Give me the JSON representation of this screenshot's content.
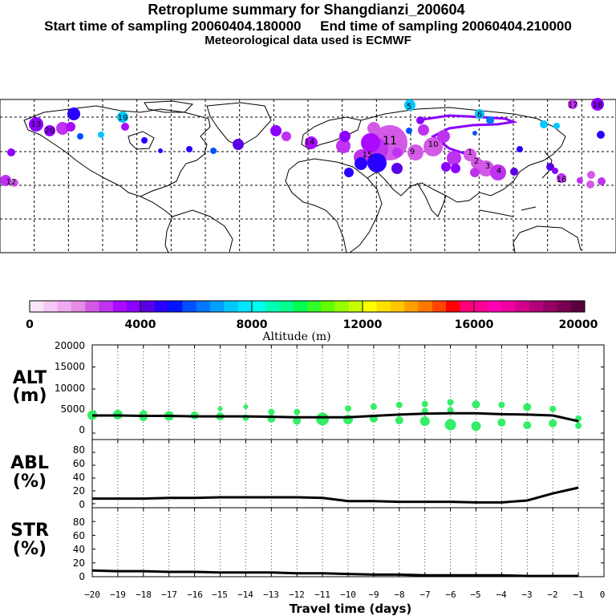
{
  "header": {
    "title": "Retroplume summary for Shangdianzi_200604",
    "sampling": "Start time of sampling 20060404.180000     End time of sampling 20060404.210000",
    "met": "Meteorological data used is ECMWF"
  },
  "colorbar": {
    "label": "Altitude (m)",
    "tick_labels": [
      "0",
      "4000",
      "8000",
      "12000",
      "16000",
      "20000"
    ],
    "colors": [
      "#fae6fa",
      "#f5c8f5",
      "#f0aaf0",
      "#e68ce6",
      "#d25ae6",
      "#be32f0",
      "#aa0aff",
      "#8c00ff",
      "#5a00e6",
      "#2800ff",
      "#0014ff",
      "#0050ff",
      "#0078ff",
      "#00a0ff",
      "#00c8ff",
      "#00e6ff",
      "#00fff0",
      "#00ffb4",
      "#00ff8c",
      "#00ff50",
      "#32ff28",
      "#64ff00",
      "#96ff00",
      "#c8ff00",
      "#ffff00",
      "#ffe100",
      "#ffc800",
      "#ffa000",
      "#ff7800",
      "#ff4600",
      "#ff0000",
      "#ff0078",
      "#ff0096",
      "#ff00b4",
      "#f000a0",
      "#d2008c",
      "#b40078",
      "#960064",
      "#7a004f",
      "#5a003c"
    ]
  },
  "map_labels": [
    {
      "text": "13",
      "color": "#8c00ff"
    },
    {
      "text": "20",
      "color": "#8c00ff"
    },
    {
      "text": "19",
      "color": "#00c8ff"
    },
    {
      "text": "5",
      "color": "#00c8ff"
    },
    {
      "text": "6",
      "color": "#8c00ff"
    },
    {
      "text": "18",
      "color": "#8c00ff"
    },
    {
      "text": "17",
      "color": "#2800ff"
    },
    {
      "text": "16",
      "color": "#be32f0"
    },
    {
      "text": "12",
      "color": "#d25ae6"
    },
    {
      "text": "11",
      "color": "#aa0aff"
    },
    {
      "text": "15",
      "color": "#be32f0"
    },
    {
      "text": "14",
      "color": "#aa0aff"
    },
    {
      "text": "1",
      "color": "#00c8ff"
    },
    {
      "text": "2",
      "color": "#8c00ff"
    },
    {
      "text": "3",
      "color": "#be32f0"
    },
    {
      "text": "4",
      "color": "#be32f0"
    },
    {
      "text": "10",
      "color": "#8c00ff"
    },
    {
      "text": "9",
      "color": "#be32f0"
    }
  ],
  "chart_data": [
    {
      "type": "line",
      "panel": "ALT",
      "ylabel": "ALT\n(m)",
      "ylabel_lines": [
        "ALT",
        "(m)"
      ],
      "ylim": [
        0,
        20000
      ],
      "yticks": [
        0,
        5000,
        10000,
        15000,
        20000
      ],
      "ytick_labels": [
        "0",
        "5000",
        "10000",
        "15000",
        "20000"
      ],
      "x": [
        -20,
        -19,
        -18,
        -17,
        -16,
        -15,
        -14,
        -13,
        -12,
        -11,
        -10,
        -9,
        -8,
        -7,
        -6,
        -5,
        -4,
        -3,
        -2,
        -1
      ],
      "series": [
        {
          "name": "mean altitude",
          "values": [
            4000,
            4000,
            3900,
            3900,
            3800,
            3800,
            3800,
            3700,
            3600,
            3600,
            3600,
            3900,
            4200,
            4400,
            4500,
            4500,
            4300,
            4200,
            4000,
            2700
          ]
        }
      ],
      "scatter": [
        {
          "x": -20,
          "y": 4100,
          "s": 6
        },
        {
          "x": -19,
          "y": 4200,
          "s": 6
        },
        {
          "x": -18,
          "y": 4300,
          "s": 5
        },
        {
          "x": -18,
          "y": 3600,
          "s": 5
        },
        {
          "x": -17,
          "y": 3900,
          "s": 6
        },
        {
          "x": -16,
          "y": 4000,
          "s": 5
        },
        {
          "x": -15,
          "y": 5500,
          "s": 3
        },
        {
          "x": -15,
          "y": 3800,
          "s": 5
        },
        {
          "x": -14,
          "y": 6000,
          "s": 3
        },
        {
          "x": -14,
          "y": 3500,
          "s": 4
        },
        {
          "x": -13,
          "y": 4800,
          "s": 4
        },
        {
          "x": -13,
          "y": 3300,
          "s": 5
        },
        {
          "x": -12,
          "y": 4800,
          "s": 4
        },
        {
          "x": -12,
          "y": 2800,
          "s": 5
        },
        {
          "x": -11,
          "y": 3200,
          "s": 8
        },
        {
          "x": -10,
          "y": 5600,
          "s": 4
        },
        {
          "x": -10,
          "y": 3100,
          "s": 6
        },
        {
          "x": -9,
          "y": 6000,
          "s": 4
        },
        {
          "x": -9,
          "y": 3300,
          "s": 5
        },
        {
          "x": -8,
          "y": 6400,
          "s": 4
        },
        {
          "x": -8,
          "y": 2900,
          "s": 5
        },
        {
          "x": -7,
          "y": 6600,
          "s": 4
        },
        {
          "x": -7,
          "y": 5000,
          "s": 4
        },
        {
          "x": -7,
          "y": 2700,
          "s": 6
        },
        {
          "x": -6,
          "y": 7000,
          "s": 4
        },
        {
          "x": -6,
          "y": 5200,
          "s": 4
        },
        {
          "x": -6,
          "y": 1900,
          "s": 7
        },
        {
          "x": -5,
          "y": 6500,
          "s": 5
        },
        {
          "x": -5,
          "y": 1600,
          "s": 6
        },
        {
          "x": -4,
          "y": 6400,
          "s": 4
        },
        {
          "x": -4,
          "y": 2400,
          "s": 5
        },
        {
          "x": -3,
          "y": 5900,
          "s": 5
        },
        {
          "x": -3,
          "y": 1800,
          "s": 5
        },
        {
          "x": -2,
          "y": 5500,
          "s": 4
        },
        {
          "x": -2,
          "y": 2200,
          "s": 5
        },
        {
          "x": -1,
          "y": 3300,
          "s": 4
        },
        {
          "x": -1,
          "y": 1700,
          "s": 4
        }
      ]
    },
    {
      "type": "line",
      "panel": "ABL",
      "ylabel_lines": [
        "ABL",
        "(%)"
      ],
      "ylim": [
        0,
        100
      ],
      "yticks": [
        0,
        20,
        40,
        60,
        80
      ],
      "ytick_labels": [
        "0",
        "20",
        "40",
        "60",
        "80"
      ],
      "x": [
        -20,
        -19,
        -18,
        -17,
        -16,
        -15,
        -14,
        -13,
        -12,
        -11,
        -10,
        -9,
        -8,
        -7,
        -6,
        -5,
        -4,
        -3,
        -2,
        -1
      ],
      "series": [
        {
          "name": "ABL fraction",
          "values": [
            8,
            8,
            8,
            9,
            9,
            10,
            10,
            10,
            10,
            9,
            4,
            4,
            3,
            3,
            3,
            2,
            2,
            5,
            16,
            25
          ]
        }
      ]
    },
    {
      "type": "line",
      "panel": "STR",
      "ylabel_lines": [
        "STR",
        "(%)"
      ],
      "ylim": [
        0,
        100
      ],
      "yticks": [
        0,
        20,
        40,
        60,
        80
      ],
      "ytick_labels": [
        "0",
        "20",
        "40",
        "60",
        "80"
      ],
      "xlabel": "Travel time (days)",
      "xlim": [
        -20,
        0
      ],
      "xtick_labels": [
        "−20",
        "−19",
        "−18",
        "−17",
        "−16",
        "−15",
        "−14",
        "−13",
        "−12",
        "−11",
        "−10",
        "−9",
        "−8",
        "−7",
        "−6",
        "−5",
        "−4",
        "−3",
        "−2",
        "−1",
        "0"
      ],
      "x": [
        -20,
        -19,
        -18,
        -17,
        -16,
        -15,
        -14,
        -13,
        -12,
        -11,
        -10,
        -9,
        -8,
        -7,
        -6,
        -5,
        -4,
        -3,
        -2,
        -1
      ],
      "series": [
        {
          "name": "stratosphere fraction",
          "values": [
            9,
            8,
            8,
            7,
            7,
            6,
            6,
            6,
            5,
            5,
            4,
            3,
            3,
            2,
            2,
            2,
            2,
            1,
            1,
            1
          ]
        }
      ]
    }
  ]
}
